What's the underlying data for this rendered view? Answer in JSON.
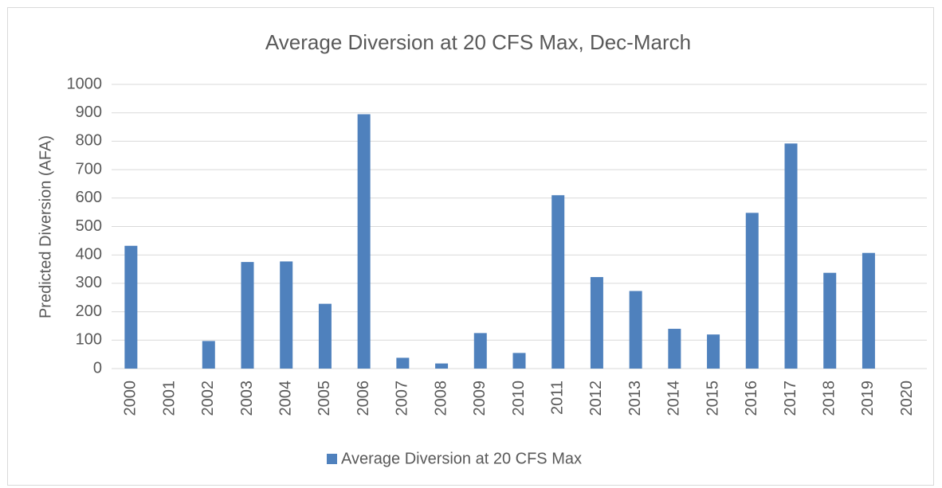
{
  "chart_data": {
    "type": "bar",
    "title": "Average Diversion at 20 CFS Max, Dec-March",
    "y_label": "Predicted Diversion (AFA)",
    "categories": [
      "2000",
      "2001",
      "2002",
      "2003",
      "2004",
      "2005",
      "2006",
      "2007",
      "2008",
      "2009",
      "2010",
      "2011",
      "2012",
      "2013",
      "2014",
      "2015",
      "2016",
      "2017",
      "2018",
      "2019",
      "2020"
    ],
    "series": [
      {
        "name": "Average Diversion at 20 CFS Max",
        "color": "#4f81bd",
        "values": [
          432,
          0,
          97,
          375,
          377,
          228,
          895,
          38,
          18,
          125,
          55,
          610,
          322,
          273,
          140,
          120,
          548,
          792,
          337,
          407,
          0
        ]
      }
    ],
    "ylim": [
      0,
      1000
    ],
    "yticks": [
      0,
      100,
      200,
      300,
      400,
      500,
      600,
      700,
      800,
      900,
      1000
    ],
    "grid": true,
    "legend": "bottom"
  }
}
